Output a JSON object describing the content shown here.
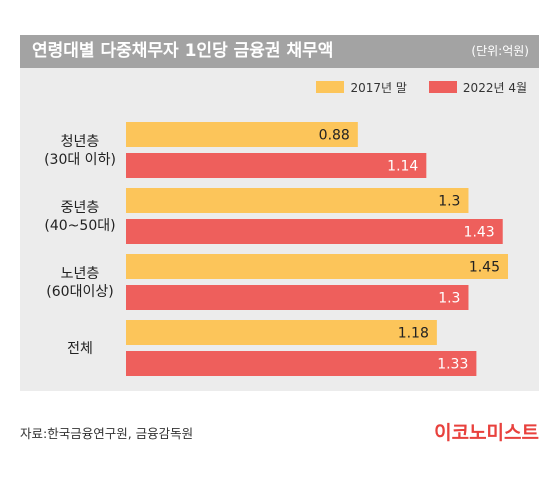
{
  "chart_data": {
    "type": "bar",
    "orientation": "horizontal",
    "title": "연령대별 다중채무자 1인당 금융권 채무액",
    "unit_label": "(단위:억원)",
    "categories": [
      {
        "line1": "청년층",
        "line2": "(30대 이하)"
      },
      {
        "line1": "중년층",
        "line2": "(40~50대)"
      },
      {
        "line1": "노년층",
        "line2": "(60대이상)"
      },
      {
        "line1": "전체",
        "line2": ""
      }
    ],
    "series": [
      {
        "name": "2017년 말",
        "color": "#fcc55a",
        "values": [
          0.88,
          1.3,
          1.45,
          1.18
        ],
        "labels": [
          "0.88",
          "1.3",
          "1.45",
          "1.18"
        ]
      },
      {
        "name": "2022년 4월",
        "color": "#ee5f5c",
        "values": [
          1.14,
          1.43,
          1.3,
          1.33
        ],
        "labels": [
          "1.14",
          "1.43",
          "1.3",
          "1.33"
        ]
      }
    ],
    "xlim": [
      0,
      1.45
    ],
    "grid": false,
    "legend_position": "top-right"
  },
  "footer": {
    "source": "자료:한국금융연구원, 금융감독원",
    "brand": "이코노미스트",
    "brand_color": "#e8413d"
  }
}
